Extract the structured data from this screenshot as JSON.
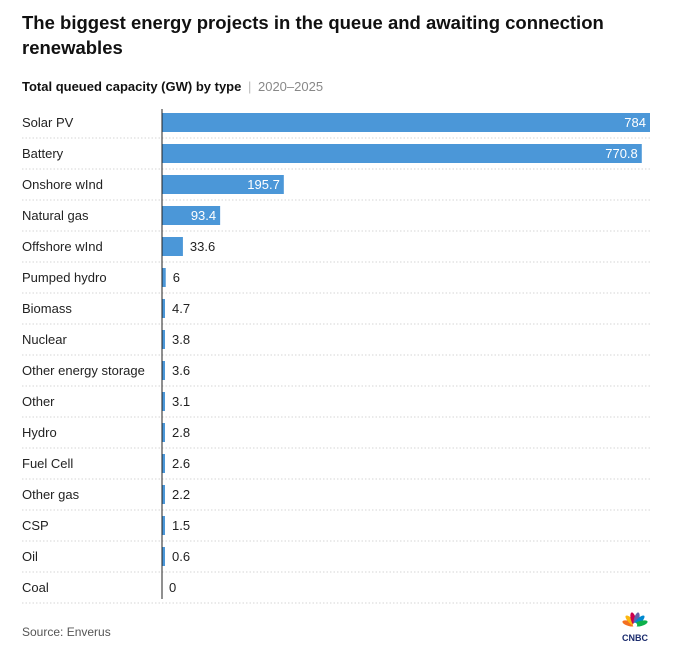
{
  "title": "The biggest energy projects in the queue and awaiting connection renewables",
  "subtitle": {
    "label": "Total queued capacity (GW) by type",
    "separator": "|",
    "range": "2020–2025"
  },
  "chart_data": {
    "type": "bar",
    "orientation": "horizontal",
    "title": "Total queued capacity (GW) by type",
    "xlabel": "",
    "ylabel": "",
    "xlim": [
      0,
      784
    ],
    "bar_color": "#4b97d8",
    "categories": [
      "Solar PV",
      "Battery",
      "Onshore wInd",
      "Natural gas",
      "Offshore wInd",
      "Pumped hydro",
      "Biomass",
      "Nuclear",
      "Other energy storage",
      "Other",
      "Hydro",
      "Fuel Cell",
      "Other gas",
      "CSP",
      "Oil",
      "Coal"
    ],
    "values": [
      784,
      770.8,
      195.7,
      93.4,
      33.6,
      6,
      4.7,
      3.8,
      3.6,
      3.1,
      2.8,
      2.6,
      2.2,
      1.5,
      0.6,
      0
    ]
  },
  "source": "Source: Enverus",
  "logo_text": "CNBC"
}
